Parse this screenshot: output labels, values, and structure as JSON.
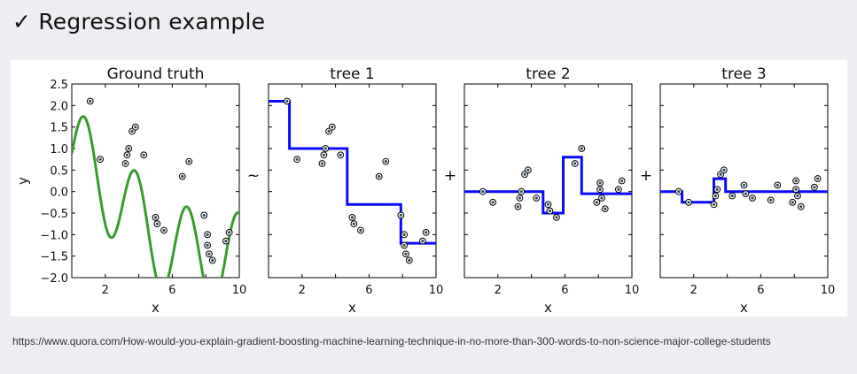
{
  "slide": {
    "title": "Regression example",
    "checkmark": "✓"
  },
  "source": {
    "url": "https://www.quora.com/How-would-you-explain-gradient-boosting-machine-learning-technique-in-no-more-than-300-words-to-non-science-major-college-students"
  },
  "operators": [
    "~",
    "+",
    "+"
  ],
  "colors": {
    "ground_truth_line": "#3a9a2f",
    "tree_line": "#0a0aff",
    "point_fill": "#2e4a5f",
    "background": "#eeeef2"
  },
  "chart_data": [
    {
      "type": "line",
      "title": "Ground truth",
      "xlabel": "x",
      "ylabel": "y",
      "xlim": [
        0,
        10
      ],
      "ylim": [
        -2.0,
        2.5
      ],
      "xticks": [
        2,
        6,
        10
      ],
      "yticks": [
        -2.0,
        -1.5,
        -1.0,
        -0.5,
        0.0,
        0.5,
        1.0,
        1.5,
        2.0,
        2.5
      ],
      "series": [
        {
          "kind": "curve",
          "color": "#3a9a2f",
          "formula": "0.8*sin(2x) + sin(x) + ... (smooth ground-truth function)"
        }
      ],
      "points": [
        [
          1.1,
          2.1
        ],
        [
          1.7,
          0.75
        ],
        [
          3.2,
          0.65
        ],
        [
          3.3,
          0.85
        ],
        [
          3.4,
          1.0
        ],
        [
          3.6,
          1.4
        ],
        [
          3.8,
          1.5
        ],
        [
          4.3,
          0.85
        ],
        [
          5.0,
          -0.6
        ],
        [
          5.1,
          -0.75
        ],
        [
          5.5,
          -0.9
        ],
        [
          6.6,
          0.35
        ],
        [
          7.0,
          0.7
        ],
        [
          7.9,
          -0.55
        ],
        [
          8.1,
          -1.0
        ],
        [
          8.1,
          -1.25
        ],
        [
          8.2,
          -1.45
        ],
        [
          8.4,
          -1.6
        ],
        [
          9.2,
          -1.15
        ],
        [
          9.4,
          -0.95
        ]
      ]
    },
    {
      "type": "line",
      "title": "tree 1",
      "xlabel": "x",
      "xlim": [
        0,
        10
      ],
      "ylim": [
        -2.0,
        2.5
      ],
      "xticks": [
        2,
        6,
        10
      ],
      "step": [
        [
          0,
          2.1
        ],
        [
          1.25,
          2.1
        ],
        [
          1.25,
          1.0
        ],
        [
          4.7,
          1.0
        ],
        [
          4.7,
          -0.3
        ],
        [
          7.9,
          -0.3
        ],
        [
          7.9,
          -1.2
        ],
        [
          10,
          -1.2
        ]
      ],
      "points": [
        [
          1.1,
          2.1
        ],
        [
          1.7,
          0.75
        ],
        [
          3.2,
          0.65
        ],
        [
          3.3,
          0.85
        ],
        [
          3.4,
          1.0
        ],
        [
          3.6,
          1.4
        ],
        [
          3.8,
          1.5
        ],
        [
          4.3,
          0.85
        ],
        [
          5.0,
          -0.6
        ],
        [
          5.1,
          -0.75
        ],
        [
          5.5,
          -0.9
        ],
        [
          6.6,
          0.35
        ],
        [
          7.0,
          0.7
        ],
        [
          7.9,
          -0.55
        ],
        [
          8.1,
          -1.0
        ],
        [
          8.1,
          -1.25
        ],
        [
          8.2,
          -1.45
        ],
        [
          8.4,
          -1.6
        ],
        [
          9.2,
          -1.15
        ],
        [
          9.4,
          -0.95
        ]
      ]
    },
    {
      "type": "line",
      "title": "tree 2",
      "xlabel": "x",
      "xlim": [
        0,
        10
      ],
      "ylim": [
        -2.0,
        2.5
      ],
      "xticks": [
        2,
        6,
        10
      ],
      "step": [
        [
          0,
          0.0
        ],
        [
          4.7,
          0.0
        ],
        [
          4.7,
          -0.5
        ],
        [
          5.9,
          -0.5
        ],
        [
          5.9,
          0.8
        ],
        [
          7.0,
          0.8
        ],
        [
          7.0,
          -0.05
        ],
        [
          10,
          -0.05
        ]
      ],
      "points": [
        [
          1.1,
          0.0
        ],
        [
          1.7,
          -0.25
        ],
        [
          3.2,
          -0.35
        ],
        [
          3.3,
          -0.15
        ],
        [
          3.4,
          0.0
        ],
        [
          3.6,
          0.4
        ],
        [
          3.8,
          0.5
        ],
        [
          4.3,
          -0.15
        ],
        [
          5.0,
          -0.3
        ],
        [
          5.1,
          -0.45
        ],
        [
          5.5,
          -0.6
        ],
        [
          6.6,
          0.65
        ],
        [
          7.0,
          1.0
        ],
        [
          7.9,
          -0.25
        ],
        [
          8.1,
          0.2
        ],
        [
          8.1,
          0.05
        ],
        [
          8.2,
          -0.15
        ],
        [
          8.4,
          -0.4
        ],
        [
          9.2,
          0.05
        ],
        [
          9.4,
          0.25
        ]
      ]
    },
    {
      "type": "line",
      "title": "tree 3",
      "xlabel": "x",
      "xlim": [
        0,
        10
      ],
      "ylim": [
        -2.0,
        2.5
      ],
      "xticks": [
        2,
        6,
        10
      ],
      "step": [
        [
          0,
          0.0
        ],
        [
          1.3,
          0.0
        ],
        [
          1.3,
          -0.25
        ],
        [
          3.2,
          -0.25
        ],
        [
          3.2,
          0.3
        ],
        [
          3.9,
          0.3
        ],
        [
          3.9,
          0.0
        ],
        [
          10,
          0.0
        ]
      ],
      "points": [
        [
          1.1,
          0.0
        ],
        [
          1.7,
          -0.25
        ],
        [
          3.2,
          -0.3
        ],
        [
          3.3,
          -0.1
        ],
        [
          3.4,
          0.05
        ],
        [
          3.6,
          0.4
        ],
        [
          3.8,
          0.5
        ],
        [
          4.3,
          -0.1
        ],
        [
          5.0,
          0.15
        ],
        [
          5.1,
          -0.05
        ],
        [
          5.5,
          -0.15
        ],
        [
          6.6,
          -0.2
        ],
        [
          7.0,
          0.15
        ],
        [
          7.9,
          -0.25
        ],
        [
          8.1,
          0.25
        ],
        [
          8.1,
          0.05
        ],
        [
          8.2,
          -0.1
        ],
        [
          8.4,
          -0.35
        ],
        [
          9.2,
          0.1
        ],
        [
          9.4,
          0.3
        ]
      ]
    }
  ]
}
